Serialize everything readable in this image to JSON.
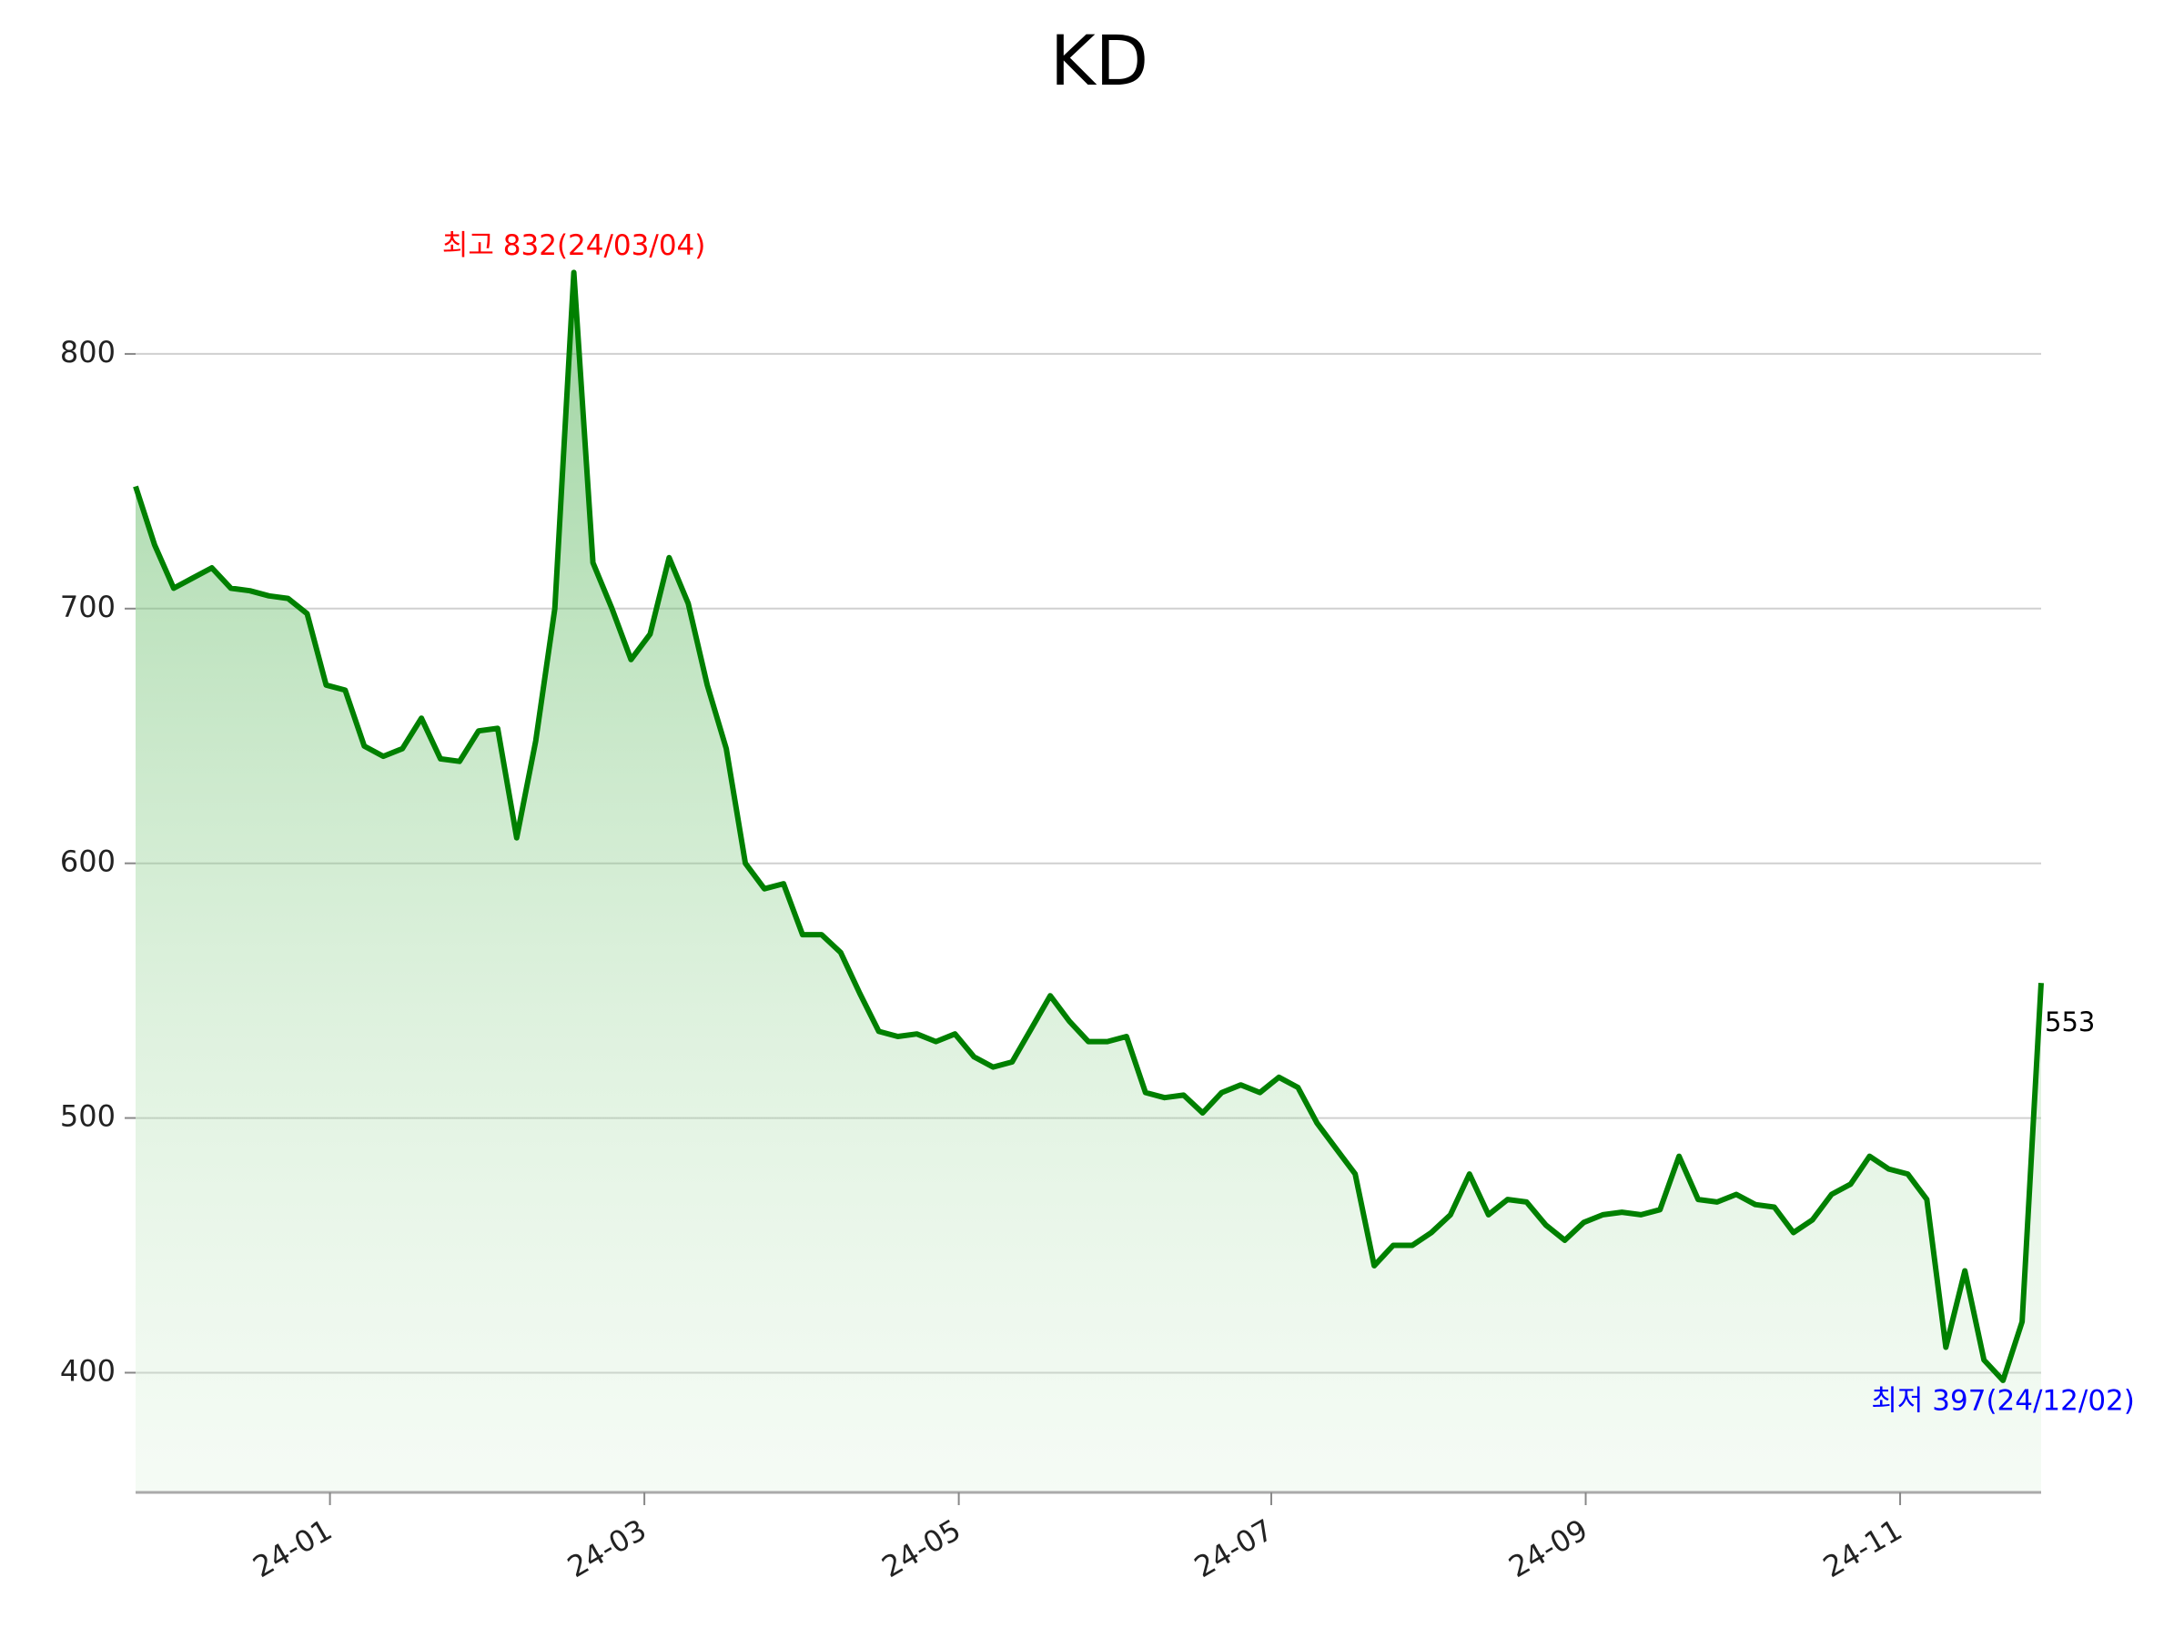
{
  "chart_data": {
    "type": "line",
    "title": "KD",
    "values": [
      748,
      725,
      708,
      712,
      716,
      708,
      707,
      705,
      704,
      698,
      670,
      668,
      646,
      642,
      645,
      657,
      641,
      640,
      652,
      653,
      610,
      648,
      700,
      832,
      718,
      700,
      680,
      690,
      720,
      702,
      670,
      645,
      600,
      590,
      592,
      572,
      572,
      565,
      549,
      534,
      532,
      533,
      530,
      533,
      524,
      520,
      522,
      535,
      548,
      538,
      530,
      530,
      532,
      510,
      508,
      509,
      502,
      510,
      513,
      510,
      516,
      512,
      498,
      488,
      478,
      442,
      450,
      450,
      455,
      462,
      478,
      462,
      468,
      467,
      458,
      452,
      459,
      462,
      463,
      462,
      464,
      485,
      468,
      467,
      470,
      466,
      465,
      455,
      460,
      470,
      474,
      485,
      480,
      478,
      468,
      410,
      440,
      405,
      397,
      420,
      553
    ],
    "color": "#008000",
    "xlim": [
      0,
      100
    ],
    "xticks": [
      {
        "value": 10.2,
        "label": "24-01"
      },
      {
        "value": 26.7,
        "label": "24-03"
      },
      {
        "value": 43.2,
        "label": "24-05"
      },
      {
        "value": 59.6,
        "label": "24-07"
      },
      {
        "value": 76.1,
        "label": "24-09"
      },
      {
        "value": 92.6,
        "label": "24-11"
      }
    ],
    "ylim": [
      353,
      860
    ],
    "yticks": [
      400,
      500,
      600,
      700,
      800
    ],
    "grid": true,
    "annotations": {
      "max": "최고 832(24/03/04)",
      "min": "최저 397(24/12/02)"
    }
  }
}
